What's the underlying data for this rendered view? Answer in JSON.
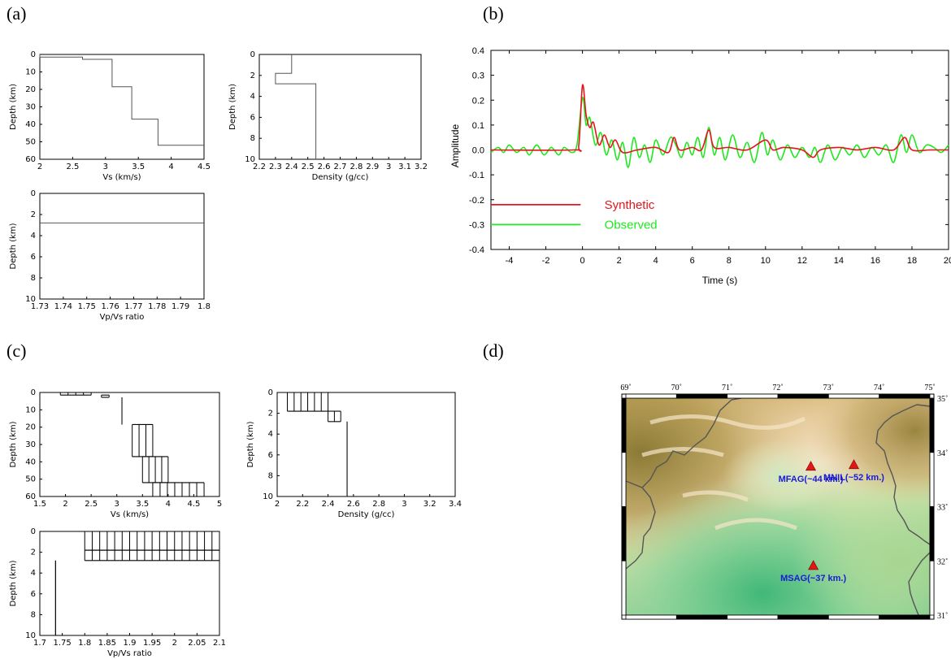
{
  "panels": {
    "a": "(a)",
    "b": "(b)",
    "c": "(c)",
    "d": "(d)"
  },
  "chart_data": [
    {
      "id": "a_vs",
      "type": "line",
      "title": "",
      "xlabel": "Vs (km/s)",
      "ylabel": "Depth (km)",
      "xlim": [
        2,
        4.5
      ],
      "ylim": [
        0,
        60
      ],
      "y_inverted": true,
      "xticks": [
        "2",
        "2.5",
        "3",
        "3.5",
        "4",
        "4.5"
      ],
      "yticks": [
        "0",
        "10",
        "20",
        "30",
        "40",
        "50",
        "60"
      ],
      "series": [
        {
          "step": [
            [
              2.0,
              0
            ],
            [
              2.0,
              1.5
            ],
            [
              2.65,
              1.5
            ],
            [
              2.65,
              2.8
            ],
            [
              3.1,
              2.8
            ],
            [
              3.1,
              18.5
            ],
            [
              3.4,
              18.5
            ],
            [
              3.4,
              37
            ],
            [
              3.8,
              37
            ],
            [
              3.8,
              52
            ],
            [
              4.5,
              52
            ]
          ]
        }
      ]
    },
    {
      "id": "a_density",
      "type": "line",
      "title": "",
      "xlabel": "Density (g/cc)",
      "ylabel": "Depth (km)",
      "xlim": [
        2.2,
        3.2
      ],
      "ylim": [
        0,
        10
      ],
      "y_inverted": true,
      "xticks": [
        "2.2",
        "2.3",
        "2.4",
        "2.5",
        "2.6",
        "2.7",
        "2.8",
        "2.9",
        "3",
        "3.1",
        "3.2"
      ],
      "yticks": [
        "0",
        "2",
        "4",
        "6",
        "8",
        "10"
      ],
      "series": [
        {
          "step": [
            [
              2.4,
              0
            ],
            [
              2.4,
              1.8
            ],
            [
              2.3,
              1.8
            ],
            [
              2.3,
              2.8
            ],
            [
              2.55,
              2.8
            ],
            [
              2.55,
              10
            ]
          ]
        }
      ]
    },
    {
      "id": "a_vpvs",
      "type": "line",
      "title": "",
      "xlabel": "Vp/Vs ratio",
      "ylabel": "Depth (km)",
      "xlim": [
        1.73,
        1.8
      ],
      "ylim": [
        0,
        10
      ],
      "y_inverted": true,
      "xticks": [
        "1.73",
        "1.74",
        "1.75",
        "1.76",
        "1.77",
        "1.78",
        "1.79",
        "1.8"
      ],
      "yticks": [
        "0",
        "2",
        "4",
        "6",
        "8",
        "10"
      ],
      "series": [
        {
          "hline": 2.8
        }
      ]
    },
    {
      "id": "b_waveform",
      "type": "line",
      "title": "",
      "xlabel": "Time (s)",
      "ylabel": "Amplitude",
      "xlim": [
        -5,
        20
      ],
      "ylim": [
        -0.4,
        0.4
      ],
      "xticks": [
        "-4",
        "-2",
        "0",
        "2",
        "4",
        "6",
        "8",
        "10",
        "12",
        "14",
        "16",
        "18",
        "20"
      ],
      "yticks": [
        "-0.4",
        "-0.3",
        "-0.2",
        "-0.1",
        "0.0",
        "0.1",
        "0.2",
        "0.3",
        "0.4"
      ],
      "series": [
        {
          "name": "Synthetic",
          "color": "#e8141c",
          "x": [
            -5,
            -0.5,
            -0.2,
            0,
            0.2,
            0.4,
            0.6,
            0.9,
            1.2,
            1.5,
            1.8,
            2.2,
            3,
            4,
            4.7,
            5,
            5.3,
            6,
            6.5,
            6.9,
            7.2,
            8,
            9,
            10,
            10.4,
            11,
            12,
            12.6,
            13,
            14,
            15,
            16,
            17,
            17.6,
            18,
            19,
            20
          ],
          "y": [
            0,
            0,
            0.02,
            0.26,
            0.14,
            0.09,
            0.11,
            0.02,
            0.06,
            0.01,
            0.04,
            -0.01,
            0,
            0.01,
            -0.01,
            0.05,
            0,
            0.01,
            0,
            0.08,
            0.01,
            0.01,
            0,
            0.04,
            0,
            0.01,
            0,
            -0.03,
            0,
            0.01,
            0,
            0.01,
            0,
            0.05,
            0,
            0,
            0
          ]
        },
        {
          "name": "Observed",
          "color": "#1ee81e",
          "x": [
            -5,
            -4.6,
            -4.3,
            -4,
            -3.6,
            -3.2,
            -2.9,
            -2.5,
            -2.1,
            -1.7,
            -1.3,
            -1,
            -0.6,
            -0.3,
            0,
            0.2,
            0.4,
            0.7,
            1,
            1.3,
            1.6,
            1.9,
            2.2,
            2.5,
            2.8,
            3.1,
            3.4,
            3.7,
            4,
            4.4,
            4.8,
            5.1,
            5.4,
            5.7,
            6,
            6.3,
            6.6,
            6.9,
            7.2,
            7.5,
            7.8,
            8.2,
            8.6,
            9,
            9.4,
            9.8,
            10.1,
            10.4,
            10.8,
            11.2,
            11.6,
            12,
            12.4,
            12.7,
            13,
            13.4,
            13.8,
            14.2,
            14.6,
            15,
            15.4,
            15.8,
            16.2,
            16.6,
            17,
            17.4,
            17.7,
            18,
            18.4,
            18.8,
            19.2,
            19.6,
            20
          ],
          "y": [
            -0.01,
            0.01,
            -0.01,
            0.02,
            -0.01,
            0.01,
            -0.02,
            0.02,
            -0.02,
            0.01,
            -0.02,
            0.01,
            -0.01,
            0.02,
            0.21,
            0.1,
            0.13,
            0.02,
            0.07,
            -0.02,
            0.04,
            -0.04,
            0.03,
            -0.07,
            0.05,
            -0.03,
            0.02,
            -0.05,
            0.04,
            -0.02,
            0.05,
            0.02,
            -0.03,
            0.03,
            -0.02,
            0.05,
            -0.03,
            0.09,
            -0.02,
            0.05,
            -0.04,
            0.06,
            -0.03,
            0.03,
            -0.05,
            0.07,
            -0.02,
            0.04,
            -0.04,
            0.02,
            -0.03,
            0.01,
            -0.03,
            0.01,
            -0.05,
            0.02,
            -0.04,
            0.01,
            -0.02,
            0.02,
            -0.03,
            0.01,
            -0.02,
            0.02,
            -0.05,
            0.06,
            -0.01,
            0.06,
            -0.01,
            0.02,
            0.01,
            -0.01,
            0.02
          ]
        }
      ],
      "legend": "lower-left"
    },
    {
      "id": "c_vs",
      "type": "line",
      "title": "",
      "xlabel": "Vs (km/s)",
      "ylabel": "Depth (km)",
      "xlim": [
        1.5,
        5
      ],
      "ylim": [
        0,
        60
      ],
      "y_inverted": true,
      "xticks": [
        "1.5",
        "2",
        "2.5",
        "3",
        "3.5",
        "4",
        "4.5",
        "5"
      ],
      "yticks": [
        "0",
        "10",
        "20",
        "30",
        "40",
        "50",
        "60"
      ],
      "layers": [
        {
          "top": 0,
          "bottom": 1.5,
          "min": 1.9,
          "max": 2.5
        },
        {
          "top": 1.5,
          "bottom": 2.8,
          "min": 2.7,
          "max": 2.85
        },
        {
          "top": 2.8,
          "bottom": 18.5,
          "min": 3.1,
          "max": 3.1
        },
        {
          "top": 18.5,
          "bottom": 37,
          "min": 3.3,
          "max": 3.7
        },
        {
          "top": 37,
          "bottom": 52,
          "min": 3.5,
          "max": 4.0
        },
        {
          "top": 52,
          "bottom": 60,
          "min": 3.7,
          "max": 4.7
        }
      ]
    },
    {
      "id": "c_density",
      "type": "line",
      "title": "",
      "xlabel": "Density (g/cc)",
      "ylabel": "Depth (km)",
      "xlim": [
        2,
        3.4
      ],
      "ylim": [
        0,
        10
      ],
      "y_inverted": true,
      "xticks": [
        "2",
        "2.2",
        "2.4",
        "2.6",
        "2.8",
        "3",
        "3.2",
        "3.4"
      ],
      "yticks": [
        "0",
        "2",
        "4",
        "6",
        "8",
        "10"
      ],
      "layers": [
        {
          "top": 0,
          "bottom": 1.8,
          "min": 2.08,
          "max": 2.4
        },
        {
          "top": 1.8,
          "bottom": 2.8,
          "min": 2.4,
          "max": 2.5
        },
        {
          "top": 2.8,
          "bottom": 10,
          "min": 2.55,
          "max": 2.55
        }
      ]
    },
    {
      "id": "c_vpvs",
      "type": "line",
      "title": "",
      "xlabel": "Vp/Vs ratio",
      "ylabel": "Depth (km)",
      "xlim": [
        1.7,
        2.1
      ],
      "ylim": [
        0,
        10
      ],
      "y_inverted": true,
      "xticks": [
        "1.7",
        "1.75",
        "1.8",
        "1.85",
        "1.9",
        "1.95",
        "2",
        "2.05",
        "2.1"
      ],
      "yticks": [
        "0",
        "2",
        "4",
        "6",
        "8",
        "10"
      ],
      "layers": [
        {
          "top": 0,
          "bottom": 1.8,
          "min": 1.8,
          "max": 2.1
        },
        {
          "top": 1.8,
          "bottom": 2.8,
          "min": 1.8,
          "max": 2.1
        },
        {
          "top": 2.8,
          "bottom": 10,
          "min": 1.735,
          "max": 1.735
        }
      ]
    }
  ],
  "map": {
    "lon_ticks": [
      "69˚",
      "70˚",
      "71˚",
      "72˚",
      "73˚",
      "74˚",
      "75˚"
    ],
    "lat_ticks": [
      "35˚",
      "34˚",
      "33˚",
      "32˚",
      "31˚"
    ],
    "lon_range": [
      69,
      75
    ],
    "lat_range": [
      31,
      35
    ],
    "stations": [
      {
        "label": "MFAG(~44 km.)",
        "lon": 72.65,
        "lat": 33.73
      },
      {
        "label": "MNIL(~52 km.)",
        "lon": 73.5,
        "lat": 33.76
      },
      {
        "label": "MSAG(~37 km.)",
        "lon": 72.7,
        "lat": 31.9
      }
    ],
    "marker_color": "#e01818"
  }
}
